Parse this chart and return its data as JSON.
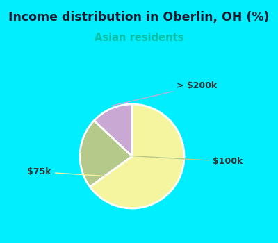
{
  "title": "Income distribution in Oberlin, OH (%)",
  "subtitle": "Asian residents",
  "title_color": "#1a1a2e",
  "subtitle_color": "#00bfa5",
  "bg_cyan": "#00eeff",
  "bg_chart": "#e8f4ef",
  "slices": [
    {
      "label": "$75k",
      "value": 65,
      "color": "#f5f5a0"
    },
    {
      "label": "$100k",
      "value": 22,
      "color": "#b5c98a"
    },
    {
      "label": "> $200k",
      "value": 13,
      "color": "#c9a8d4"
    }
  ],
  "label_color": "#333333",
  "start_angle": 90,
  "figsize": [
    4.0,
    3.5
  ],
  "dpi": 100
}
